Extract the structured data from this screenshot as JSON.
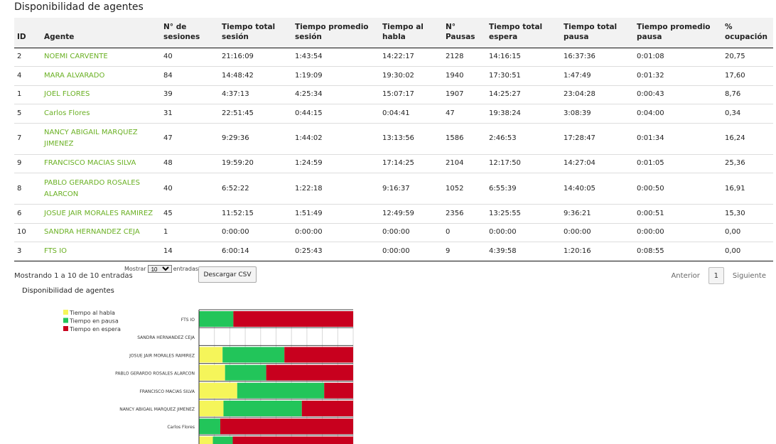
{
  "page": {
    "title": "Disponibilidad de agentes"
  },
  "table": {
    "headers": [
      "ID",
      "Agente",
      "N° de sesiones",
      "Tiempo total sesión",
      "Tiempo promedio sesión",
      "Tiempo al habla",
      "N° Pausas",
      "Tiempo total espera",
      "Tiempo total pausa",
      "Tiempo promedio pausa",
      "% ocupación"
    ],
    "rows": [
      [
        "2",
        "NOEMI CARVENTE",
        "40",
        "21:16:09",
        "1:43:54",
        "14:22:17",
        "2128",
        "14:16:15",
        "16:37:36",
        "0:01:08",
        "20,75"
      ],
      [
        "4",
        "MARA ALVARADO",
        "84",
        "14:48:42",
        "1:19:09",
        "19:30:02",
        "1940",
        "17:30:51",
        "1:47:49",
        "0:01:32",
        "17,60"
      ],
      [
        "1",
        "JOEL FLORES",
        "39",
        "4:37:13",
        "4:25:34",
        "15:07:17",
        "1907",
        "14:25:27",
        "23:04:28",
        "0:00:43",
        "8,76"
      ],
      [
        "5",
        "Carlos Flores",
        "31",
        "22:51:45",
        "0:44:15",
        "0:04:41",
        "47",
        "19:38:24",
        "3:08:39",
        "0:04:00",
        "0,34"
      ],
      [
        "7",
        "NANCY ABIGAIL MARQUEZ JIMENEZ",
        "47",
        "9:29:36",
        "1:44:02",
        "13:13:56",
        "1586",
        "2:46:53",
        "17:28:47",
        "0:01:34",
        "16,24"
      ],
      [
        "9",
        "FRANCISCO MACIAS SILVA",
        "48",
        "19:59:20",
        "1:24:59",
        "17:14:25",
        "2104",
        "12:17:50",
        "14:27:04",
        "0:01:05",
        "25,36"
      ],
      [
        "8",
        "PABLO GERARDO ROSALES ALARCON",
        "40",
        "6:52:22",
        "1:22:18",
        "9:16:37",
        "1052",
        "6:55:39",
        "14:40:05",
        "0:00:50",
        "16,91"
      ],
      [
        "6",
        "JOSUE JAIR MORALES RAMIREZ",
        "45",
        "11:52:15",
        "1:51:49",
        "12:49:59",
        "2356",
        "13:25:55",
        "9:36:21",
        "0:00:51",
        "15,30"
      ],
      [
        "10",
        "SANDRA HERNANDEZ CEJA",
        "1",
        "0:00:00",
        "0:00:00",
        "0:00:00",
        "0",
        "0:00:00",
        "0:00:00",
        "0:00:00",
        "0,00"
      ],
      [
        "3",
        "FTS IO",
        "14",
        "6:00:14",
        "0:25:43",
        "0:00:00",
        "9",
        "4:39:58",
        "1:20:16",
        "0:08:55",
        "0,00"
      ]
    ]
  },
  "footer": {
    "info": "Mostrando 1 a 10 de 10 entradas",
    "show_prefix": "Mostrar",
    "show_value": "10",
    "show_suffix": "entradas",
    "csv_button": "Descargar CSV",
    "prev": "Anterior",
    "page": "1",
    "next": "Siguiente"
  },
  "chart_title": "Disponibilidad de agentes",
  "chart_data": {
    "type": "bar",
    "orientation": "horizontal",
    "stacked": true,
    "normalized_percent": true,
    "categories": [
      "FTS IO",
      "SANDRA HERNANDEZ CEJA",
      "JOSUE JAIR MORALES RAMIREZ",
      "PABLO GERARDO ROSALES ALARCON",
      "FRANCISCO MACIAS SILVA",
      "NANCY ABIGAIL MARQUEZ JIMENEZ",
      "Carlos Flores"
    ],
    "series": [
      {
        "name": "Tiempo al habla",
        "color": "#f5f55a",
        "values": [
          0,
          0,
          15.3,
          16.9,
          24.8,
          15.9,
          0
        ]
      },
      {
        "name": "Tiempo en pausa",
        "color": "#22c55a",
        "values": [
          22.3,
          0,
          40.1,
          26.7,
          56.4,
          50.8,
          13.8
        ]
      },
      {
        "name": "Tiempo en espera",
        "color": "#c8001e",
        "values": [
          77.7,
          0,
          44.6,
          56.4,
          18.8,
          33.3,
          86.2
        ]
      }
    ],
    "partial_next_bar": {
      "values": [
        9,
        12.9,
        78.1
      ]
    },
    "legend_position": "top-left",
    "grid": true,
    "xlim": [
      0,
      100
    ]
  }
}
